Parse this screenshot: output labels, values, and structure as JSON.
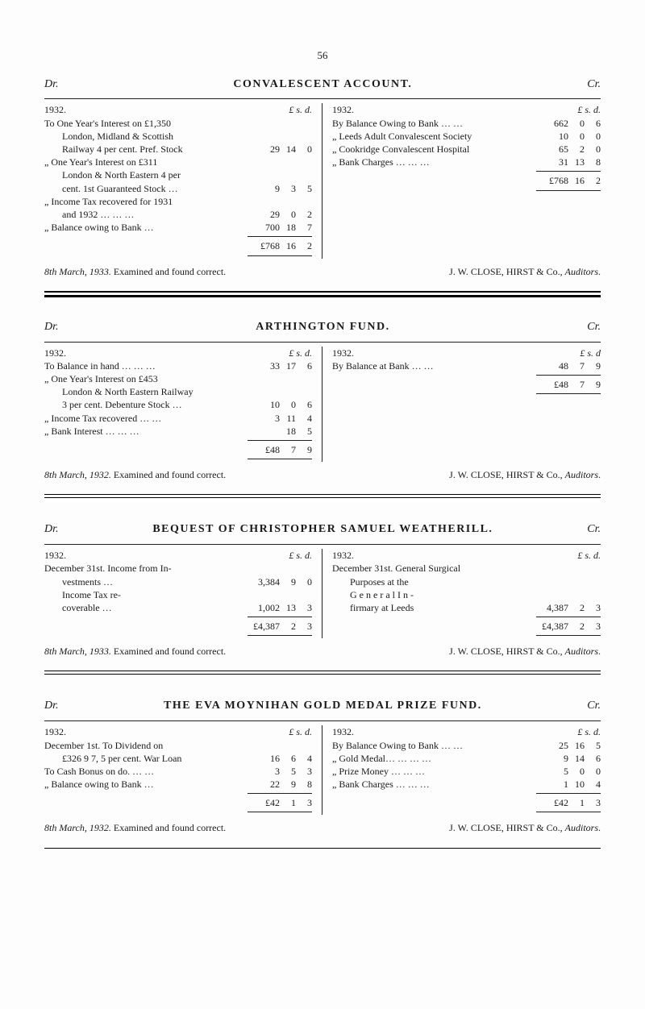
{
  "pageNumber": "56",
  "sections": [
    {
      "dr": "Dr.",
      "cr": "Cr.",
      "title": "CONVALESCENT ACCOUNT.",
      "left": {
        "year": "1932.",
        "lsd": "£  s.  d.",
        "lines": [
          {
            "desc": "To One Year's Interest on £1,350",
            "amt": ""
          },
          {
            "desc": "London, Midland & Scottish",
            "indent": 2,
            "amt": ""
          },
          {
            "desc": "Railway 4 per cent. Pref. Stock",
            "indent": 2,
            "l": "29",
            "s": "14",
            "d": "0"
          },
          {
            "desc": "„ One Year's Interest on £311",
            "amt": ""
          },
          {
            "desc": "London & North Eastern 4 per",
            "indent": 2,
            "amt": ""
          },
          {
            "desc": "cent. 1st Guaranteed Stock …",
            "indent": 2,
            "l": "9",
            "s": "3",
            "d": "5"
          },
          {
            "desc": "„ Income Tax recovered for 1931",
            "amt": ""
          },
          {
            "desc": "and 1932        …    …    …",
            "indent": 2,
            "l": "29",
            "s": "0",
            "d": "2"
          },
          {
            "desc": "„ Balance owing to Bank        …",
            "l": "700",
            "s": "18",
            "d": "7"
          }
        ],
        "total": {
          "label": "",
          "l": "£768",
          "s": "16",
          "d": "2"
        },
        "footnote": "8th March, 1933.   Examined and found correct."
      },
      "right": {
        "year": "1932.",
        "lsd": "£  s.  d.",
        "lines": [
          {
            "desc": "By Balance Owing to Bank  …   …",
            "l": "662",
            "s": "0",
            "d": "6"
          },
          {
            "desc": "„ Leeds Adult Convalescent Society",
            "l": "10",
            "s": "0",
            "d": "0"
          },
          {
            "desc": "„ Cookridge Convalescent Hospital",
            "l": "65",
            "s": "2",
            "d": "0"
          },
          {
            "desc": "„ Bank Charges      …    …    …",
            "l": "31",
            "s": "13",
            "d": "8"
          }
        ],
        "total": {
          "label": "",
          "l": "£768",
          "s": "16",
          "d": "2"
        },
        "footnote": "J. W. CLOSE, HIRST & Co., Auditors."
      },
      "ruleStyle": "triple"
    },
    {
      "dr": "Dr.",
      "cr": "Cr.",
      "title": "ARTHINGTON FUND.",
      "left": {
        "year": "1932.",
        "lsd": "£  s.  d.",
        "lines": [
          {
            "desc": "To Balance in hand  …    …    …",
            "l": "33",
            "s": "17",
            "d": "6"
          },
          {
            "desc": "„ One Year's Interest on £453",
            "amt": ""
          },
          {
            "desc": "London & North Eastern Railway",
            "indent": 2,
            "amt": ""
          },
          {
            "desc": "3 per cent. Debenture Stock   …",
            "indent": 2,
            "l": "10",
            "s": "0",
            "d": "6"
          },
          {
            "desc": "„ Income Tax recovered …    …",
            "l": "3",
            "s": "11",
            "d": "4"
          },
          {
            "desc": "„ Bank Interest      …    …    …",
            "l": "",
            "s": "18",
            "d": "5"
          }
        ],
        "total": {
          "label": "",
          "l": "£48",
          "s": "7",
          "d": "9"
        },
        "footnote": "8th March, 1932.    Examined and found correct."
      },
      "right": {
        "year": "1932.",
        "lsd": "£  s.  d",
        "lines": [
          {
            "desc": "By Balance at Bank        …    …",
            "l": "48",
            "s": "7",
            "d": "9"
          }
        ],
        "total": {
          "label": "",
          "l": "£48",
          "s": "7",
          "d": "9"
        },
        "footnote": "J. W. CLOSE, HIRST & Co., Auditors."
      },
      "ruleStyle": "double"
    },
    {
      "dr": "Dr.",
      "cr": "Cr.",
      "title": "BEQUEST OF CHRISTOPHER SAMUEL WEATHERILL.",
      "left": {
        "year": "1932.",
        "lsd": "£    s.  d.",
        "lines": [
          {
            "desc": "December 31st.  Income   from   In-",
            "amt": ""
          },
          {
            "desc": "vestments      …",
            "indent": 2,
            "l": "3,384",
            "s": "9",
            "d": "0"
          },
          {
            "desc": "Income    Tax   re-",
            "indent": 2,
            "amt": ""
          },
          {
            "desc": "coverable      …",
            "indent": 2,
            "l": "1,002",
            "s": "13",
            "d": "3"
          }
        ],
        "total": {
          "label": "",
          "l": "£4,387",
          "s": "2",
          "d": "3"
        },
        "footnote": "8th March, 1933.    Examined and found correct."
      },
      "right": {
        "year": "1932.",
        "lsd": "£    s.  d.",
        "lines": [
          {
            "desc": "December 31st.  General  Surgical",
            "amt": ""
          },
          {
            "desc": "Purposes  at  the",
            "indent": 2,
            "amt": ""
          },
          {
            "desc": "G e n e r a l    I n -",
            "indent": 2,
            "amt": ""
          },
          {
            "desc": "firmary at Leeds",
            "indent": 2,
            "l": "4,387",
            "s": "2",
            "d": "3"
          }
        ],
        "total": {
          "label": "",
          "l": "£4,387",
          "s": "2",
          "d": "3"
        },
        "footnote": "J. W. CLOSE, HIRST & Co., Auditors."
      },
      "ruleStyle": "double"
    },
    {
      "dr": "Dr.",
      "cr": "Cr.",
      "title": "THE EVA MOYNIHAN GOLD MEDAL PRIZE FUND.",
      "left": {
        "year": "1932.",
        "lsd": "£  s.  d.",
        "lines": [
          {
            "desc": "December 1st.   To   Dividend   on",
            "amt": ""
          },
          {
            "desc": "£326  9  7, 5 per cent. War Loan",
            "indent": 2,
            "l": "16",
            "s": "6",
            "d": "4"
          },
          {
            "desc": "To Cash Bonus on do.      …    …",
            "l": "3",
            "s": "5",
            "d": "3"
          },
          {
            "desc": "„ Balance owing to Bank      …",
            "l": "22",
            "s": "9",
            "d": "8"
          }
        ],
        "total": {
          "label": "",
          "l": "£42",
          "s": "1",
          "d": "3"
        },
        "footnote": "8th March, 1932.    Examined and found correct."
      },
      "right": {
        "year": "1932.",
        "lsd": "£  s.  d.",
        "lines": [
          {
            "desc": "By Balance Owing to Bank …   …",
            "l": "25",
            "s": "16",
            "d": "5"
          },
          {
            "desc": "„ Gold Medal…   …    …    …",
            "l": "9",
            "s": "14",
            "d": "6"
          },
          {
            "desc": "„ Prize Money      …    …    …",
            "l": "5",
            "s": "0",
            "d": "0"
          },
          {
            "desc": "„ Bank Charges     …    …    …",
            "l": "1",
            "s": "10",
            "d": "4"
          }
        ],
        "total": {
          "label": "",
          "l": "£42",
          "s": "1",
          "d": "3"
        },
        "footnote": "J. W. CLOSE, HIRST & Co., Auditors."
      },
      "ruleStyle": "single"
    }
  ]
}
